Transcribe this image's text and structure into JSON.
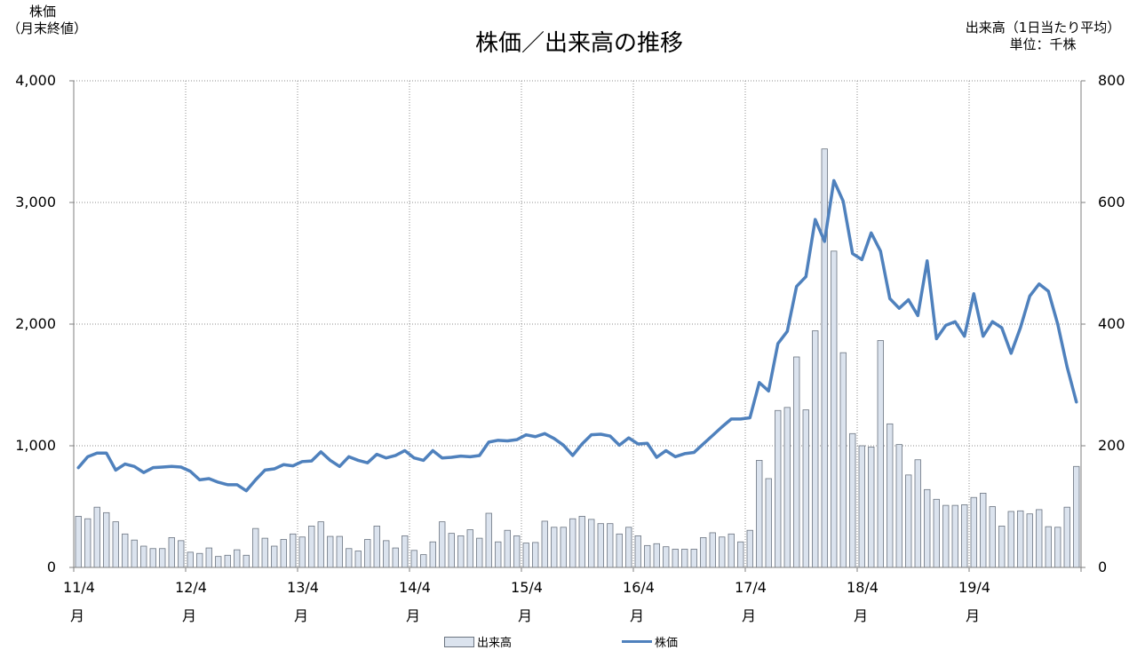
{
  "chart_data": {
    "type": "bar+line",
    "title": "株価／出来高の推移",
    "left_axis_label": [
      "株価",
      "（月末終値）"
    ],
    "right_axis_label": [
      "出来高（1日当たり平均）",
      "単位：千株"
    ],
    "y_left": {
      "range": [
        0,
        4000
      ],
      "ticks": [
        "0",
        "1,000",
        "2,000",
        "3,000",
        "4,000"
      ]
    },
    "y_right": {
      "range": [
        0,
        800
      ],
      "ticks": [
        "0",
        "200",
        "400",
        "600",
        "800"
      ]
    },
    "x_tick_labels": [
      "11/4",
      "12/4",
      "13/4",
      "14/4",
      "15/4",
      "16/4",
      "17/4",
      "18/4",
      "19/4"
    ],
    "x_tick_suffix": "月",
    "grid": true,
    "legend_position": "bottom",
    "legend": [
      "出来高",
      "株価"
    ],
    "colors": {
      "bar_fill": "#dbe3ee",
      "bar_stroke": "#6b7480",
      "line": "#4f81bd"
    },
    "series": [
      {
        "name": "出来高",
        "type": "bar",
        "axis": "right",
        "values": [
          84,
          80,
          99,
          90,
          75,
          55,
          45,
          35,
          31,
          31,
          49,
          44,
          25,
          23,
          32,
          18,
          20,
          29,
          20,
          64,
          48,
          35,
          46,
          55,
          50,
          68,
          75,
          51,
          51,
          31,
          27,
          46,
          68,
          44,
          32,
          52,
          28,
          21,
          42,
          75,
          56,
          52,
          62,
          48,
          89,
          42,
          61,
          52,
          40,
          41,
          76,
          66,
          66,
          80,
          84,
          79,
          72,
          72,
          55,
          66,
          52,
          36,
          39,
          34,
          30,
          30,
          30,
          49,
          57,
          50,
          55,
          42,
          61,
          176,
          146,
          258,
          263,
          346,
          259,
          389,
          688,
          520,
          353,
          220,
          200,
          198,
          373,
          236,
          202,
          152,
          177,
          128,
          112,
          102,
          102,
          103,
          115,
          122,
          100,
          68,
          92,
          93,
          88,
          95,
          67,
          66,
          99,
          166
        ]
      },
      {
        "name": "株価",
        "type": "line",
        "axis": "left",
        "values": [
          820,
          910,
          940,
          940,
          800,
          850,
          830,
          780,
          820,
          825,
          830,
          825,
          790,
          720,
          730,
          700,
          680,
          680,
          630,
          720,
          800,
          810,
          845,
          835,
          870,
          875,
          950,
          880,
          830,
          910,
          880,
          860,
          930,
          900,
          920,
          960,
          900,
          880,
          960,
          900,
          905,
          915,
          910,
          920,
          1030,
          1045,
          1040,
          1050,
          1090,
          1075,
          1100,
          1060,
          1005,
          920,
          1015,
          1090,
          1095,
          1080,
          1005,
          1065,
          1015,
          1020,
          905,
          960,
          910,
          935,
          945,
          1015,
          1085,
          1155,
          1220,
          1220,
          1230,
          1520,
          1450,
          1840,
          1940,
          2310,
          2390,
          2860,
          2680,
          3180,
          3010,
          2580,
          2530,
          2750,
          2600,
          2210,
          2130,
          2200,
          2070,
          2520,
          1880,
          1990,
          2020,
          1900,
          2250,
          1900,
          2020,
          1970,
          1760,
          1970,
          2230,
          2330,
          2270,
          2000,
          1650,
          1360
        ]
      }
    ]
  }
}
